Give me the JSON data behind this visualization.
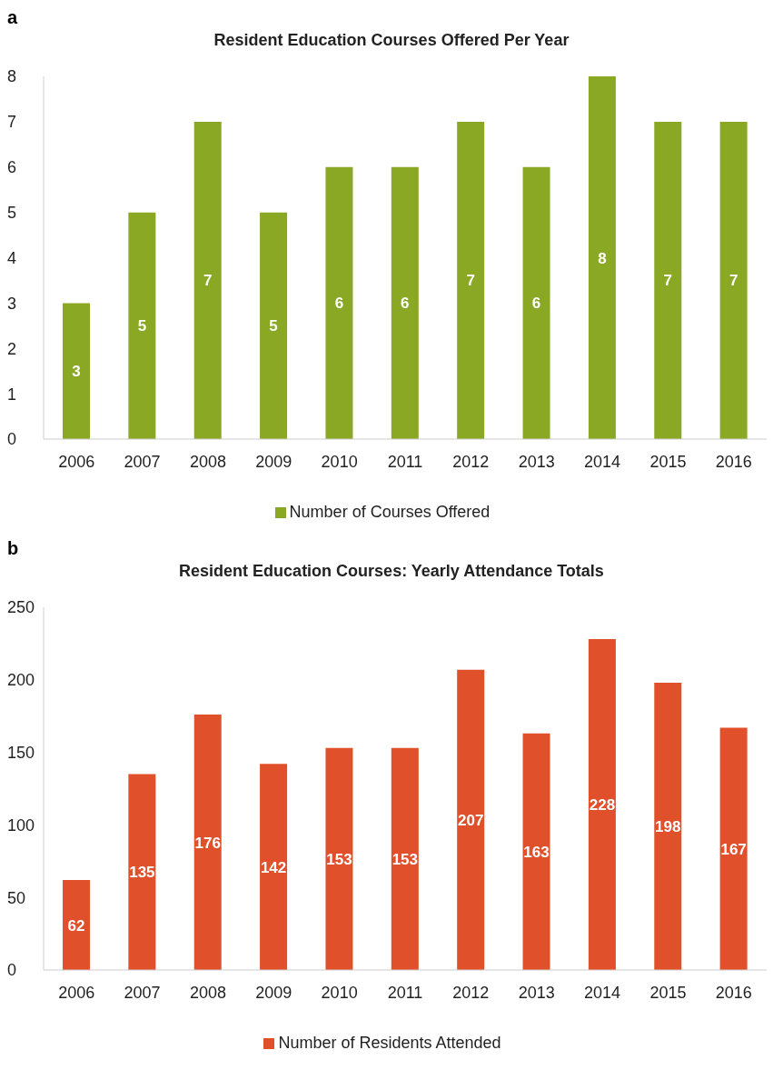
{
  "chart_data": [
    {
      "type": "bar",
      "title": "Resident Education Courses Offered Per Year",
      "annotations": [
        "a"
      ],
      "categories": [
        "2006",
        "2007",
        "2008",
        "2009",
        "2010",
        "2011",
        "2012",
        "2013",
        "2014",
        "2015",
        "2016"
      ],
      "series": [
        {
          "name": "Number of Courses Offered",
          "color": "#8aa823",
          "values": [
            3,
            5,
            7,
            5,
            6,
            6,
            7,
            6,
            8,
            7,
            7
          ]
        }
      ],
      "ylim": [
        0,
        8
      ],
      "yticks": [
        0,
        1,
        2,
        3,
        4,
        5,
        6,
        7,
        8
      ],
      "grid": false,
      "legend": "bottom",
      "data_labels": true
    },
    {
      "type": "bar",
      "title": "Resident Education Courses: Yearly Attendance Totals",
      "annotations": [
        "b"
      ],
      "categories": [
        "2006",
        "2007",
        "2008",
        "2009",
        "2010",
        "2011",
        "2012",
        "2013",
        "2014",
        "2015",
        "2016"
      ],
      "series": [
        {
          "name": "Number of Residents Attended",
          "color": "#e0502a",
          "values": [
            62,
            135,
            176,
            142,
            153,
            153,
            207,
            163,
            228,
            198,
            167
          ]
        }
      ],
      "ylim": [
        0,
        250
      ],
      "yticks": [
        0,
        50,
        100,
        150,
        200,
        250
      ],
      "grid": false,
      "legend": "bottom",
      "data_labels": true
    }
  ]
}
